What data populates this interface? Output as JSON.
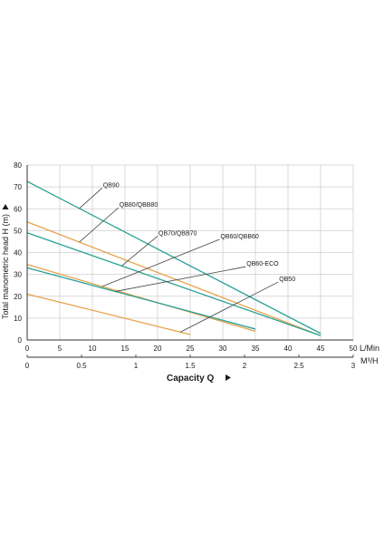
{
  "chart_data": {
    "type": "line",
    "ylabel": "Total manometric head H (m)",
    "xlabel": "Capacity  Q",
    "x_unit_top": "L/Min",
    "x_unit_bottom": "M³/H",
    "xlim": [
      0,
      50
    ],
    "ylim": [
      0,
      80
    ],
    "x_ticks_lmin": [
      "0",
      "5",
      "10",
      "15",
      "20",
      "25",
      "30",
      "35",
      "40",
      "45",
      "50"
    ],
    "x_ticks_m3h": [
      "0",
      "0.5",
      "1",
      "1.5",
      "2",
      "2.5",
      "3"
    ],
    "y_ticks": [
      "0",
      "10",
      "20",
      "30",
      "40",
      "50",
      "60",
      "70",
      "80"
    ],
    "grid": true,
    "colors": {
      "teal": "#2aa197",
      "orange": "#e6a24a",
      "axis": "#333333",
      "grid": "#cfcfcf"
    },
    "series": [
      {
        "name": "QB90",
        "color": "#2aa197",
        "x": [
          0,
          45
        ],
        "y": [
          72.5,
          3
        ]
      },
      {
        "name": "QB80/QBB80",
        "color": "#e6a24a",
        "x": [
          0,
          45
        ],
        "y": [
          54,
          2
        ]
      },
      {
        "name": "QB70/QBB70",
        "color": "#2aa197",
        "x": [
          0,
          45
        ],
        "y": [
          49,
          2
        ]
      },
      {
        "name": "QB60/QBB60",
        "color": "#e6a24a",
        "x": [
          0,
          35
        ],
        "y": [
          34.5,
          4
        ]
      },
      {
        "name": "QB60-ECO",
        "color": "#2aa197",
        "x": [
          0,
          35
        ],
        "y": [
          33,
          5
        ]
      },
      {
        "name": "QB50",
        "color": "#e6a24a",
        "x": [
          0,
          25
        ],
        "y": [
          21,
          2.5
        ]
      }
    ],
    "annotations": [
      {
        "text": "QB90",
        "series": 0,
        "at_x": 8,
        "label_x": 11.5,
        "label_y": 69.5
      },
      {
        "text": "QB80/QBB80",
        "series": 1,
        "at_x": 8,
        "label_x": 14,
        "label_y": 60.5
      },
      {
        "text": "QB70/QBB70",
        "series": 2,
        "at_x": 14.5,
        "label_x": 20,
        "label_y": 47.5
      },
      {
        "text": "QB60/QBB60",
        "series": 3,
        "at_x": 11.5,
        "label_x": 29.5,
        "label_y": 46
      },
      {
        "text": "QB60-ECO",
        "series": 4,
        "at_x": 13.5,
        "label_x": 33.5,
        "label_y": 33.5
      },
      {
        "text": "QB50",
        "series": 5,
        "at_x": 23.5,
        "label_x": 38.5,
        "label_y": 26.5
      }
    ]
  }
}
